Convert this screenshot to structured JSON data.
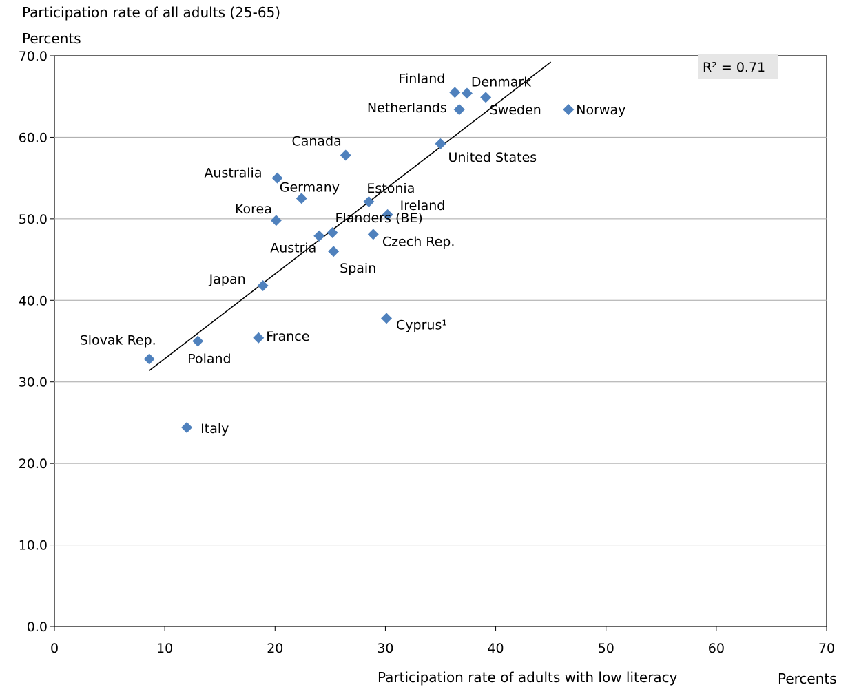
{
  "title": "Participation rate of all adults (25-65)",
  "y_unit": "Percents",
  "x_label": "Participation rate of adults with low literacy",
  "x_unit": "Percents",
  "r_squared": "R² = 0.71",
  "colors": {
    "marker": "#4F81BD",
    "grid": "#A6A6A6",
    "trend": "#000000",
    "r2_box": "#E6E6E6"
  },
  "chart_data": {
    "type": "scatter",
    "xlim": [
      0,
      70
    ],
    "ylim": [
      0,
      70
    ],
    "x_ticks": [
      "0",
      "10",
      "20",
      "30",
      "40",
      "50",
      "60",
      "70"
    ],
    "y_ticks": [
      "0.0",
      "10.0",
      "20.0",
      "30.0",
      "40.0",
      "50.0",
      "60.0",
      "70.0"
    ],
    "grid": "horizontal",
    "trendline": {
      "type": "linear",
      "x_start": 8.6,
      "x_end": 45.0
    },
    "points": [
      {
        "label": "Finland",
        "x": 36.3,
        "y": 65.5
      },
      {
        "label": "Denmark",
        "x": 37.4,
        "y": 65.4
      },
      {
        "label": "",
        "x": 39.1,
        "y": 64.9
      },
      {
        "label": "Netherlands",
        "x": 36.7,
        "y": 63.4
      },
      {
        "label": "Sweden",
        "x": 36.7,
        "y": 63.4
      },
      {
        "label": "Norway",
        "x": 46.6,
        "y": 63.4
      },
      {
        "label": "United States",
        "x": 35.0,
        "y": 59.2
      },
      {
        "label": "Canada",
        "x": 26.4,
        "y": 57.8
      },
      {
        "label": "Australia",
        "x": 20.2,
        "y": 55.0
      },
      {
        "label": "Germany",
        "x": 22.4,
        "y": 52.5
      },
      {
        "label": "Estonia",
        "x": 28.5,
        "y": 52.1
      },
      {
        "label": "Ireland",
        "x": 30.2,
        "y": 50.5
      },
      {
        "label": "Korea",
        "x": 20.1,
        "y": 49.8
      },
      {
        "label": "Flanders (BE)",
        "x": 25.2,
        "y": 48.3
      },
      {
        "label": "",
        "x": 24.0,
        "y": 47.9
      },
      {
        "label": "Czech Rep.",
        "x": 28.9,
        "y": 48.1
      },
      {
        "label": "Austria",
        "x": 24.0,
        "y": 47.9
      },
      {
        "label": "Spain",
        "x": 25.3,
        "y": 46.0
      },
      {
        "label": "Japan",
        "x": 18.9,
        "y": 41.8
      },
      {
        "label": "Cyprus¹",
        "x": 30.1,
        "y": 37.8
      },
      {
        "label": "France",
        "x": 18.5,
        "y": 35.4
      },
      {
        "label": "Slovak Rep.",
        "x": 8.6,
        "y": 32.8
      },
      {
        "label": "Poland",
        "x": 13.0,
        "y": 35.0
      },
      {
        "label": "Italy",
        "x": 12.0,
        "y": 24.4
      }
    ]
  }
}
